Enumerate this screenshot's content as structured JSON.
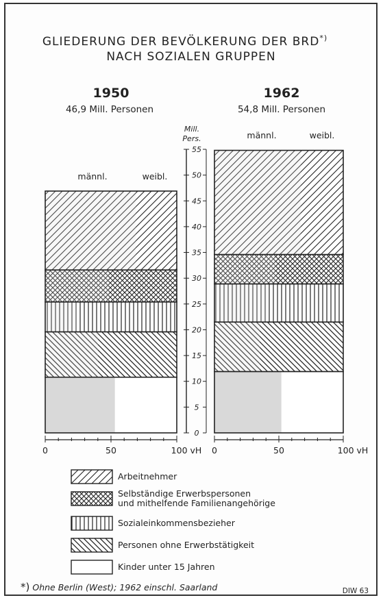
{
  "title_line1": "GLIEDERUNG DER BEVÖLKERUNG DER BRD",
  "title_sup": "*)",
  "title_line2": "NACH SOZIALEN GRUPPEN",
  "footnote_mark": "*)",
  "footnote_text": "Ohne Berlin (West); 1962 einschl. Saarland",
  "source_label": "DIW 63",
  "chart_data": {
    "type": "bar",
    "y_axis_label_line1": "Mill.",
    "y_axis_label_line2": "Pers.",
    "y_ticks": [
      0,
      5,
      10,
      15,
      20,
      25,
      30,
      35,
      40,
      45,
      50,
      55
    ],
    "ylim": [
      0,
      55
    ],
    "x_ticks": [
      0,
      50,
      100
    ],
    "x_unit_label": "100 vH",
    "x_tick_labels": [
      "0",
      "50",
      "100 vH"
    ],
    "sex_labels": {
      "male": "männl.",
      "female": "weibl."
    },
    "categories": [
      "Kinder unter 15 Jahren",
      "Personen ohne Erwerbstätigkeit",
      "Sozialeinkommensbezieher",
      "Selbständige Erwerbspersonen und mithelfende Familienangehörige",
      "Arbeitnehmer"
    ],
    "legend": [
      {
        "label_line1": "Arbeitnehmer",
        "label_line2": "",
        "pattern": "diag-right"
      },
      {
        "label_line1": "Selbständige Erwerbspersonen",
        "label_line2": "und mithelfende Familienangehörige",
        "pattern": "cross"
      },
      {
        "label_line1": "Sozialeinkommensbezieher",
        "label_line2": "",
        "pattern": "vertical"
      },
      {
        "label_line1": "Personen ohne Erwerbstätigkeit",
        "label_line2": "",
        "pattern": "diag-left"
      },
      {
        "label_line1": "Kinder unter 15 Jahren",
        "label_line2": "",
        "pattern": "blank"
      }
    ],
    "series": [
      {
        "year": "1950",
        "total_label": "46,9 Mill. Personen",
        "total": 46.9,
        "segments": [
          {
            "category": "Kinder unter 15 Jahren",
            "value": 10.8,
            "male_pct": 53
          },
          {
            "category": "Personen ohne Erwerbstätigkeit",
            "value": 8.8,
            "male_pct": 40
          },
          {
            "category": "Sozialeinkommensbezieher",
            "value": 5.8,
            "male_pct": 24
          },
          {
            "category": "Selbständige Erwerbspersonen und mithelfende Familienangehörige",
            "value": 6.2,
            "male_pct": 48
          },
          {
            "category": "Arbeitnehmer",
            "value": 15.3,
            "male_pct": 69
          }
        ]
      },
      {
        "year": "1962",
        "total_label": "54,8 Mill. Personen",
        "total": 54.8,
        "segments": [
          {
            "category": "Kinder unter 15 Jahren",
            "value": 11.9,
            "male_pct": 52
          },
          {
            "category": "Personen ohne Erwerbstätigkeit",
            "value": 9.6,
            "male_pct": 35
          },
          {
            "category": "Sozialeinkommensbezieher",
            "value": 7.4,
            "male_pct": 42
          },
          {
            "category": "Selbständige Erwerbspersonen und mithelfende Familienangehörige",
            "value": 5.7,
            "male_pct": 47
          },
          {
            "category": "Arbeitnehmer",
            "value": 20.2,
            "male_pct": 67
          }
        ]
      }
    ]
  }
}
